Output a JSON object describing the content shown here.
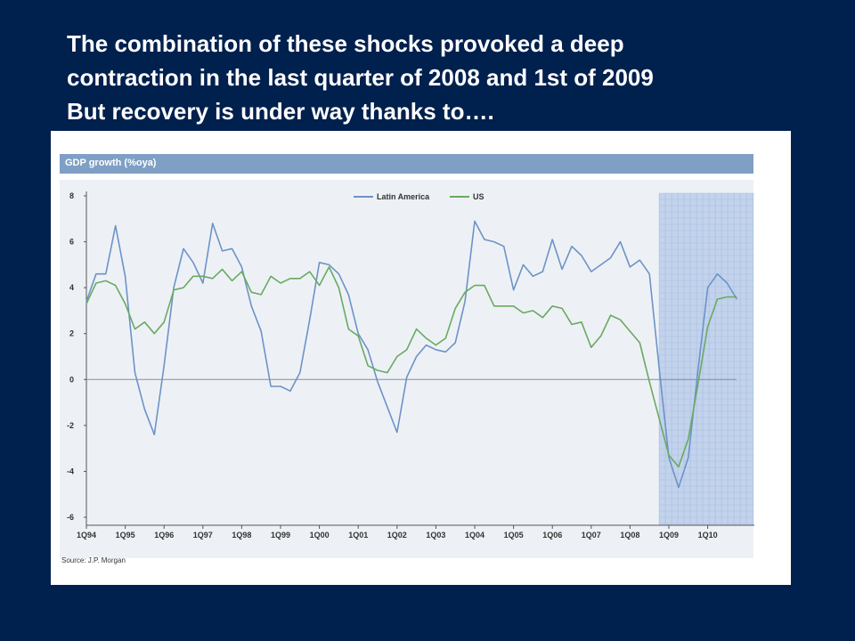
{
  "slide": {
    "title_lines": [
      "The combination of these shocks provoked a deep",
      "contraction in the last quarter of 2008 and 1st of 2009",
      "But recovery is under way thanks to…."
    ]
  },
  "chart_data": {
    "type": "line",
    "title": "GDP growth (%oya)",
    "source": "Source: J.P. Morgan",
    "ylim": [
      -6,
      8
    ],
    "yticks": [
      8,
      6,
      4,
      2,
      0,
      -2,
      -4,
      -6
    ],
    "xtick_labels": [
      "1Q94",
      "1Q95",
      "1Q96",
      "1Q97",
      "1Q98",
      "1Q99",
      "1Q00",
      "1Q01",
      "1Q02",
      "1Q03",
      "1Q04",
      "1Q05",
      "1Q06",
      "1Q07",
      "1Q08",
      "1Q09",
      "1Q10"
    ],
    "shaded_region": {
      "from": "4Q08",
      "to": "4Q10"
    },
    "legend_position": "top-center",
    "grid": false,
    "series": [
      {
        "name": "Latin America",
        "color": "#6d93c6",
        "values": [
          3.4,
          4.6,
          4.6,
          6.7,
          4.5,
          0.3,
          -1.3,
          -2.4,
          0.6,
          4.0,
          5.7,
          5.1,
          4.2,
          6.8,
          5.6,
          5.7,
          4.9,
          3.2,
          2.1,
          -0.3,
          -0.3,
          -0.5,
          0.3,
          2.6,
          5.1,
          5.0,
          4.6,
          3.7,
          2.0,
          1.3,
          -0.1,
          -1.2,
          -2.3,
          0.1,
          1.0,
          1.5,
          1.3,
          1.2,
          1.6,
          3.4,
          6.9,
          6.1,
          6.0,
          5.8,
          3.9,
          5.0,
          4.5,
          4.7,
          6.1,
          4.8,
          5.8,
          5.4,
          4.7,
          5.0,
          5.3,
          6.0,
          4.9,
          5.2,
          4.6,
          0.5,
          -3.4,
          -4.7,
          -3.4,
          0.4,
          4.0,
          4.6,
          4.2,
          3.5
        ]
      },
      {
        "name": "US",
        "color": "#6aaa60",
        "values": [
          3.3,
          4.2,
          4.3,
          4.1,
          3.3,
          2.2,
          2.5,
          2.0,
          2.5,
          3.9,
          4.0,
          4.5,
          4.5,
          4.4,
          4.8,
          4.3,
          4.7,
          3.8,
          3.7,
          4.5,
          4.2,
          4.4,
          4.4,
          4.7,
          4.1,
          4.9,
          4.0,
          2.2,
          1.9,
          0.6,
          0.4,
          0.3,
          1.0,
          1.3,
          2.2,
          1.8,
          1.5,
          1.8,
          3.1,
          3.8,
          4.1,
          4.1,
          3.2,
          3.2,
          3.2,
          2.9,
          3.0,
          2.7,
          3.2,
          3.1,
          2.4,
          2.5,
          1.4,
          1.9,
          2.8,
          2.6,
          2.1,
          1.6,
          -0.1,
          -1.7,
          -3.3,
          -3.8,
          -2.6,
          -0.2,
          2.3,
          3.5,
          3.6,
          3.6
        ]
      }
    ]
  }
}
